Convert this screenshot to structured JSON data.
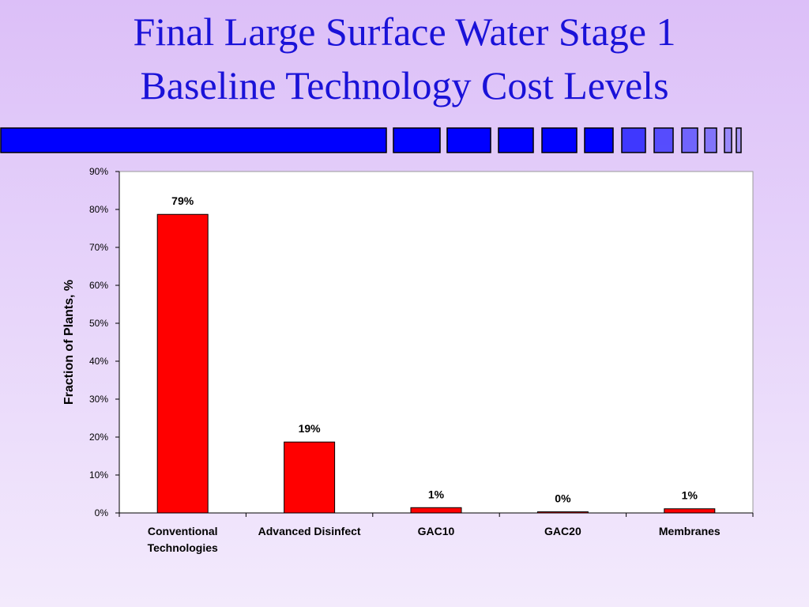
{
  "slide": {
    "title_line1": "Final Large Surface Water Stage 1",
    "title_line2": "Baseline Technology Cost Levels"
  },
  "colors": {
    "title": "#1a12d8",
    "bar_fill": "#ff0000",
    "bar_stroke": "#000000",
    "plot_background": "#ffffff",
    "deco_blocks": "#0000ff"
  },
  "chart_data": {
    "type": "bar",
    "title": "",
    "xlabel": "",
    "ylabel": "Fraction of Plants, %",
    "categories": [
      [
        "Conventional",
        "Technologies"
      ],
      [
        "Advanced Disinfect"
      ],
      [
        "GAC10"
      ],
      [
        "GAC20"
      ],
      [
        "Membranes"
      ]
    ],
    "values": [
      0.787,
      0.187,
      0.014,
      0.003,
      0.011
    ],
    "data_labels": [
      "79%",
      "19%",
      "1%",
      "0%",
      "1%"
    ],
    "ylim": [
      0,
      0.9
    ],
    "yticks": [
      0,
      0.1,
      0.2,
      0.3,
      0.4,
      0.5,
      0.6,
      0.7,
      0.8,
      0.9
    ],
    "ytick_labels": [
      "0%",
      "10%",
      "20%",
      "30%",
      "40%",
      "50%",
      "60%",
      "70%",
      "80%",
      "90%"
    ],
    "grid": false,
    "legend": "none"
  }
}
